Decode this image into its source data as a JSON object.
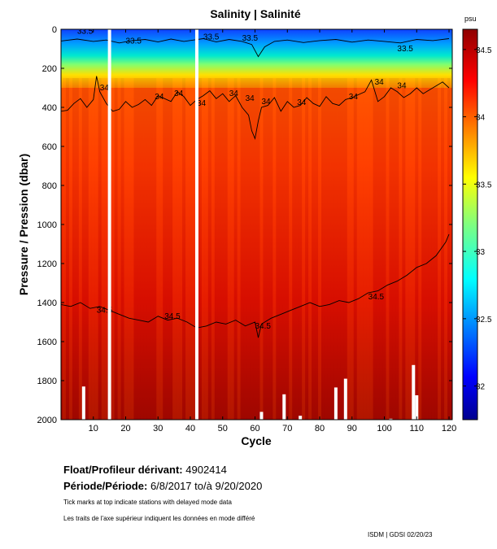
{
  "chart_data": {
    "type": "heatmap",
    "title": "Salinity | Salinité",
    "xlabel": "Cycle",
    "ylabel": "Pressure / Pression (dbar)",
    "xlim": [
      0,
      121
    ],
    "ylim": [
      2000,
      0
    ],
    "x_ticks": [
      10,
      20,
      30,
      40,
      50,
      60,
      70,
      80,
      90,
      100,
      110,
      120
    ],
    "y_ticks": [
      0,
      200,
      400,
      600,
      800,
      1000,
      1200,
      1400,
      1600,
      1800,
      2000
    ],
    "colorbar": {
      "unit_label": "psu",
      "range": [
        31.75,
        34.65
      ],
      "ticks": [
        32,
        32.5,
        33,
        33.5,
        34,
        34.5
      ],
      "tick_labels": [
        "32",
        "32.5",
        "33",
        "33.5",
        "34",
        "34.5"
      ]
    },
    "missing_cycles": [
      15,
      42
    ],
    "data_gaps": [
      {
        "cycle": 7,
        "from_dbar": 1830
      },
      {
        "cycle": 62,
        "from_dbar": 1960
      },
      {
        "cycle": 69,
        "from_dbar": 1870
      },
      {
        "cycle": 74,
        "from_dbar": 1980
      },
      {
        "cycle": 85,
        "from_dbar": 1835
      },
      {
        "cycle": 88,
        "from_dbar": 1790
      },
      {
        "cycle": 102,
        "from_dbar": 1995
      },
      {
        "cycle": 109,
        "from_dbar": 1720
      },
      {
        "cycle": 110,
        "from_dbar": 1875
      }
    ],
    "contours": [
      {
        "label": "33.5",
        "label_positions": [
          [
            5,
            10
          ],
          [
            20,
            60
          ],
          [
            44,
            40
          ],
          [
            56,
            45
          ],
          [
            104,
            100
          ]
        ],
        "x": [
          0,
          5,
          10,
          14,
          18,
          22,
          26,
          30,
          34,
          38,
          41,
          44,
          48,
          52,
          56,
          59,
          61,
          63,
          66,
          70,
          75,
          80,
          85,
          90,
          95,
          100,
          105,
          110,
          115,
          120
        ],
        "y": [
          60,
          50,
          62,
          55,
          70,
          58,
          52,
          65,
          50,
          62,
          55,
          48,
          65,
          52,
          62,
          78,
          140,
          90,
          62,
          55,
          68,
          58,
          52,
          66,
          55,
          62,
          70,
          52,
          58,
          48
        ]
      },
      {
        "label": "34",
        "label_positions": [
          [
            12,
            300
          ],
          [
            29,
            345
          ],
          [
            35,
            330
          ],
          [
            42,
            380
          ],
          [
            52,
            330
          ],
          [
            57,
            355
          ],
          [
            62,
            370
          ],
          [
            73,
            375
          ],
          [
            89,
            345
          ],
          [
            97,
            270
          ],
          [
            104,
            290
          ]
        ],
        "x": [
          0,
          2,
          4,
          6,
          8,
          10,
          11,
          12,
          14,
          16,
          18,
          20,
          22,
          24,
          26,
          28,
          30,
          32,
          34,
          36,
          38,
          40,
          42,
          44,
          46,
          48,
          50,
          52,
          54,
          56,
          58,
          59,
          60,
          61,
          62,
          64,
          66,
          68,
          70,
          72,
          74,
          76,
          78,
          80,
          82,
          84,
          86,
          88,
          90,
          92,
          94,
          96,
          98,
          100,
          102,
          104,
          106,
          108,
          110,
          112,
          114,
          116,
          118,
          120
        ],
        "y": [
          420,
          415,
          380,
          355,
          400,
          360,
          240,
          320,
          380,
          420,
          410,
          370,
          400,
          385,
          360,
          390,
          340,
          355,
          370,
          320,
          345,
          390,
          360,
          340,
          315,
          355,
          330,
          370,
          340,
          400,
          440,
          520,
          560,
          470,
          400,
          390,
          350,
          420,
          370,
          400,
          390,
          350,
          380,
          395,
          345,
          380,
          390,
          360,
          350,
          335,
          320,
          260,
          370,
          345,
          300,
          320,
          350,
          330,
          300,
          330,
          310,
          290,
          270,
          300
        ]
      },
      {
        "label": "34.5",
        "label_positions": [
          [
            11,
            1440
          ],
          [
            32,
            1470
          ],
          [
            60,
            1520
          ],
          [
            95,
            1370
          ]
        ],
        "x": [
          0,
          3,
          6,
          9,
          12,
          15,
          18,
          21,
          24,
          27,
          30,
          33,
          36,
          39,
          42,
          45,
          48,
          51,
          54,
          57,
          60,
          61,
          62,
          65,
          68,
          71,
          74,
          77,
          80,
          83,
          86,
          89,
          92,
          95,
          98,
          101,
          104,
          107,
          110,
          113,
          116,
          119,
          120
        ],
        "y": [
          1410,
          1420,
          1400,
          1430,
          1420,
          1440,
          1460,
          1480,
          1490,
          1500,
          1470,
          1490,
          1480,
          1500,
          1530,
          1520,
          1500,
          1510,
          1490,
          1520,
          1500,
          1580,
          1510,
          1480,
          1460,
          1440,
          1420,
          1400,
          1420,
          1410,
          1390,
          1400,
          1380,
          1350,
          1340,
          1310,
          1290,
          1260,
          1220,
          1200,
          1160,
          1090,
          1050
        ]
      }
    ]
  },
  "info": {
    "float_label": "Float/Profileur dérivant:",
    "float_id": "4902414",
    "period_label": "Période/Période:",
    "period_start": "6/8/2017",
    "period_to": "to/à",
    "period_end": "9/20/2020",
    "note_en": "Tick marks at top indicate stations with delayed mode data",
    "note_fr": "Les traits de l'axe supérieur indiquent les données en mode différé",
    "credit": "ISDM | GDSI",
    "date": "02/20/23"
  },
  "colors": {
    "background": "#ffffff",
    "gap": "#ffffff",
    "contour": "#000000"
  }
}
